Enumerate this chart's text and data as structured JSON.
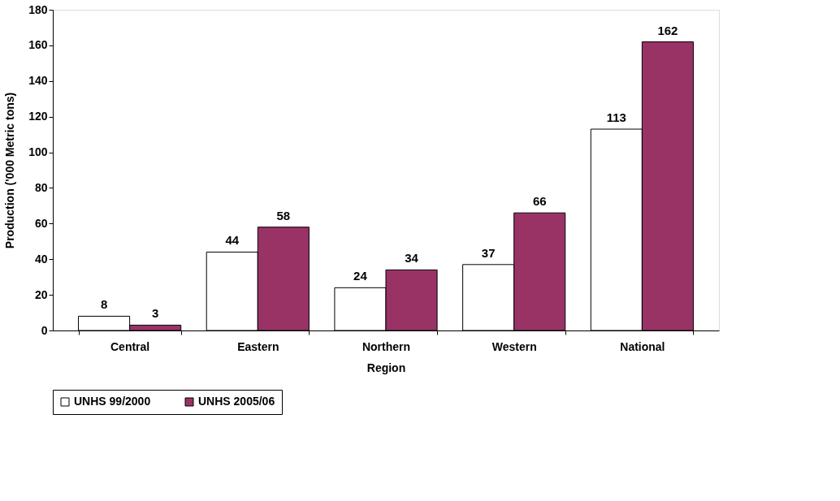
{
  "chart_data": {
    "type": "bar",
    "xlabel": "Region",
    "ylabel": "Production ('000 Metric tons)",
    "categories": [
      "Central",
      "Eastern",
      "Northern",
      "Western",
      "National"
    ],
    "series": [
      {
        "name": "UNHS 99/2000",
        "color": "#ffffff",
        "values": [
          8,
          44,
          24,
          37,
          113
        ]
      },
      {
        "name": "UNHS 2005/06",
        "color": "#993366",
        "values": [
          3,
          58,
          34,
          66,
          162
        ]
      }
    ],
    "ylim": [
      0,
      180
    ],
    "yticks": [
      0,
      20,
      40,
      60,
      80,
      100,
      120,
      140,
      160,
      180
    ],
    "grid": false,
    "legend": "bottom",
    "data_labels": true
  }
}
